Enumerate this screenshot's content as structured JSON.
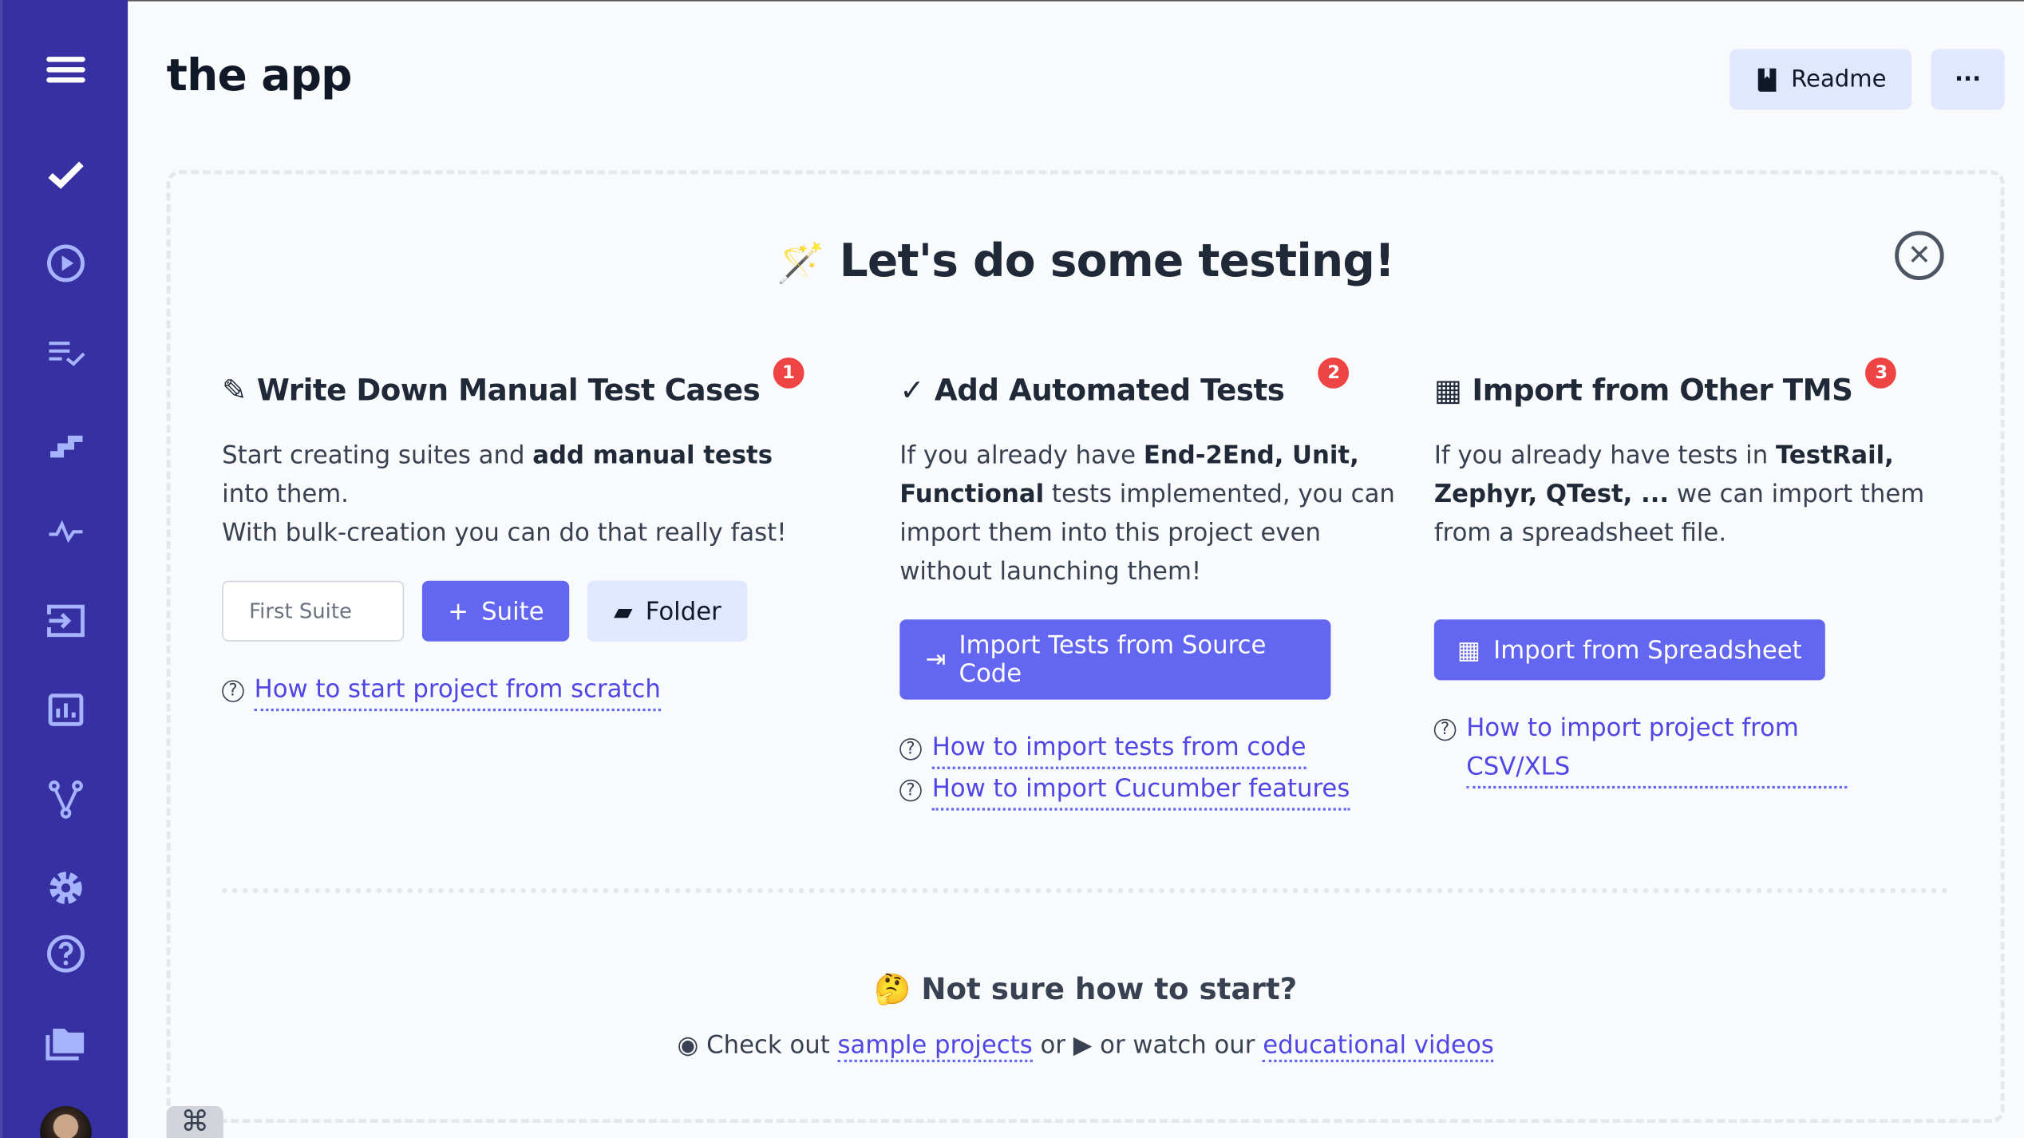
{
  "sidebar": {
    "items": [
      {
        "name": "menu-icon"
      },
      {
        "name": "tests-check-icon"
      },
      {
        "name": "runs-play-icon"
      },
      {
        "name": "plans-list-check-icon"
      },
      {
        "name": "steps-icon"
      },
      {
        "name": "analytics-pulse-icon"
      },
      {
        "name": "import-icon"
      },
      {
        "name": "reports-chart-icon"
      },
      {
        "name": "branches-icon"
      },
      {
        "name": "settings-gear-icon"
      },
      {
        "name": "help-icon"
      },
      {
        "name": "projects-folder-icon"
      }
    ],
    "accent": "#3730a3",
    "icon_color": "#a5b4fc"
  },
  "header": {
    "title": "the app",
    "readme_label": "Readme",
    "more_label": "···"
  },
  "hero": {
    "title": "Let's do some testing!",
    "emoji": "🪄"
  },
  "columns": [
    {
      "title": "Write Down Manual Test Cases",
      "badge": "1",
      "text_parts": [
        "Start creating suites and ",
        "add manual tests",
        " into them.",
        "With bulk-creation you can do that really fast!"
      ],
      "input_placeholder": "First Suite",
      "suite_button": "Suite",
      "folder_button": "Folder",
      "links": [
        "How to start project from scratch"
      ]
    },
    {
      "title": "Add Automated Tests",
      "badge": "2",
      "text_parts": [
        "If you already have ",
        "End-2End, Unit, Functional",
        " tests implemented, you can import them into this project even without launching them!"
      ],
      "button": "Import Tests from Source Code",
      "links": [
        "How to import tests from code",
        "How to import Cucumber features"
      ]
    },
    {
      "title": "Import from Other TMS",
      "badge": "3",
      "text_parts": [
        "If you already have tests in ",
        "TestRail, Zephyr, QTest, ...",
        " we can import them from a spreadsheet file."
      ],
      "button": "Import from Spreadsheet",
      "links": [
        "How to import project from CSV/XLS"
      ]
    }
  ],
  "bottom": {
    "title": "Not sure how to start?",
    "emoji": "🤔",
    "text1": "Check out",
    "link1": "sample projects",
    "text2": "or",
    "text3": "or watch our",
    "link2": "educational videos"
  },
  "cmd_label": "⌘",
  "colors": {
    "primary": "#6366f1",
    "light": "#e0e7ff",
    "badge": "#ef4444",
    "link": "#4f46e5"
  }
}
